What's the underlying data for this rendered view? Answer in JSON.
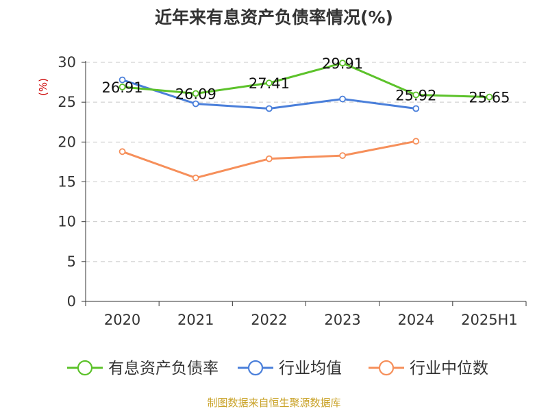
{
  "title": "近年来有息资产负债率情况(%)",
  "source": "制图数据来自恒生聚源数据库",
  "chart_data": {
    "type": "line",
    "categories": [
      "2020",
      "2021",
      "2022",
      "2023",
      "2024",
      "2025H1"
    ],
    "ylabel": "(%)",
    "ylim": [
      0,
      30
    ],
    "yticks": [
      0,
      5,
      10,
      15,
      20,
      25,
      30
    ],
    "grid": true,
    "legend_position": "bottom",
    "series": [
      {
        "name": "有息资产负债率",
        "color": "#5cc22a",
        "values": [
          26.91,
          26.09,
          27.41,
          29.91,
          25.92,
          25.65
        ],
        "labels": [
          "26.91",
          "26.09",
          "27.41",
          "29.91",
          "25.92",
          "25.65"
        ]
      },
      {
        "name": "行业均值",
        "color": "#4a7fda",
        "values": [
          27.8,
          24.8,
          24.2,
          25.4,
          24.2,
          null
        ]
      },
      {
        "name": "行业中位数",
        "color": "#f68f5a",
        "values": [
          18.8,
          15.5,
          17.9,
          18.3,
          20.1,
          null
        ]
      }
    ]
  }
}
